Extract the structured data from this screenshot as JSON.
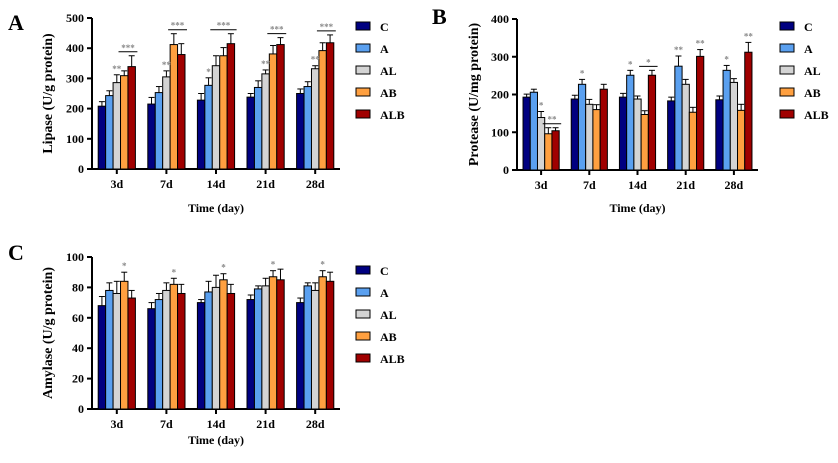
{
  "colors": {
    "C": "#000080",
    "A": "#5aa0f0",
    "AL": "#d4d4d4",
    "AB": "#ffa040",
    "ALB": "#a00000"
  },
  "chart_data": [
    {
      "panel_label": "A",
      "type": "bar",
      "title": "",
      "xlabel": "Time (day)",
      "ylabel": "Lipase (U/g protein)",
      "ylim": [
        0,
        500
      ],
      "yticks": [
        0,
        100,
        200,
        300,
        400,
        500
      ],
      "categories": [
        "3d",
        "7d",
        "14d",
        "21d",
        "28d"
      ],
      "legend": [
        "C",
        "A",
        "AL",
        "AB",
        "ALB"
      ],
      "legend_position": "right",
      "series": [
        {
          "name": "C",
          "values": [
            208,
            215,
            228,
            238,
            250
          ],
          "errors": [
            15,
            22,
            22,
            12,
            15
          ]
        },
        {
          "name": "A",
          "values": [
            243,
            253,
            277,
            270,
            273
          ],
          "errors": [
            16,
            20,
            25,
            22,
            16
          ]
        },
        {
          "name": "AL",
          "values": [
            286,
            305,
            342,
            315,
            332
          ],
          "errors": [
            26,
            20,
            33,
            13,
            10
          ]
        },
        {
          "name": "AB",
          "values": [
            309,
            412,
            375,
            381,
            392
          ],
          "errors": [
            16,
            36,
            27,
            28,
            26
          ]
        },
        {
          "name": "ALB",
          "values": [
            339,
            379,
            415,
            412,
            418
          ],
          "errors": [
            36,
            36,
            33,
            23,
            26
          ]
        }
      ],
      "annotations": [
        {
          "category": "3d",
          "series": "AL",
          "text": "**"
        },
        {
          "category": "3d",
          "series": "AB-ALB",
          "text": "***",
          "bracket": true
        },
        {
          "category": "7d",
          "series": "AL",
          "text": "**"
        },
        {
          "category": "7d",
          "series": "AB-ALB",
          "text": "***",
          "bracket": true
        },
        {
          "category": "14d",
          "series": "A",
          "text": "*"
        },
        {
          "category": "14d",
          "series": "AL-ALB",
          "text": "***",
          "bracket": true
        },
        {
          "category": "21d",
          "series": "AL",
          "text": "**"
        },
        {
          "category": "21d",
          "series": "AB-ALB",
          "text": "***",
          "bracket": true
        },
        {
          "category": "28d",
          "series": "AL",
          "text": "**"
        },
        {
          "category": "28d",
          "series": "AB-ALB",
          "text": "***",
          "bracket": true
        }
      ]
    },
    {
      "panel_label": "B",
      "type": "bar",
      "title": "",
      "xlabel": "Time (day)",
      "ylabel": "Protease (U/mg protein)",
      "ylim": [
        0,
        400
      ],
      "yticks": [
        0,
        100,
        200,
        300,
        400
      ],
      "categories": [
        "3d",
        "7d",
        "14d",
        "21d",
        "28d"
      ],
      "legend": [
        "C",
        "A",
        "AL",
        "AB",
        "ALB"
      ],
      "legend_position": "right",
      "series": [
        {
          "name": "C",
          "values": [
            193,
            188,
            193,
            183,
            186
          ],
          "errors": [
            8,
            10,
            10,
            10,
            10
          ]
        },
        {
          "name": "A",
          "values": [
            206,
            227,
            251,
            275,
            264
          ],
          "errors": [
            8,
            13,
            13,
            27,
            13
          ]
        },
        {
          "name": "AL",
          "values": [
            139,
            174,
            188,
            227,
            232
          ],
          "errors": [
            16,
            13,
            8,
            13,
            10
          ]
        },
        {
          "name": "AB",
          "values": [
            96,
            160,
            147,
            153,
            158
          ],
          "errors": [
            16,
            13,
            10,
            13,
            16
          ]
        },
        {
          "name": "ALB",
          "values": [
            104,
            214,
            251,
            301,
            312
          ],
          "errors": [
            8,
            13,
            13,
            18,
            26
          ]
        }
      ],
      "annotations": [
        {
          "category": "3d",
          "series": "AL",
          "text": "*"
        },
        {
          "category": "3d",
          "series": "AB-ALB",
          "text": "**",
          "bracket": true
        },
        {
          "category": "7d",
          "series": "A",
          "text": "*"
        },
        {
          "category": "14d",
          "series": "A",
          "text": "*"
        },
        {
          "category": "14d",
          "series": "AB-ALB",
          "text": "*",
          "bracket": true
        },
        {
          "category": "21d",
          "series": "A",
          "text": "**"
        },
        {
          "category": "21d",
          "series": "ALB",
          "text": "**"
        },
        {
          "category": "28d",
          "series": "A",
          "text": "*"
        },
        {
          "category": "28d",
          "series": "ALB",
          "text": "**"
        }
      ]
    },
    {
      "panel_label": "C",
      "type": "bar",
      "title": "",
      "xlabel": "Time (day)",
      "ylabel": "Amylase (U/g protein)",
      "ylim": [
        0,
        100
      ],
      "yticks": [
        0,
        20,
        40,
        60,
        80,
        100
      ],
      "categories": [
        "3d",
        "7d",
        "14d",
        "21d",
        "28d"
      ],
      "legend": [
        "C",
        "A",
        "AL",
        "AB",
        "ALB"
      ],
      "legend_position": "right",
      "series": [
        {
          "name": "C",
          "values": [
            68,
            66,
            70,
            72,
            70
          ],
          "errors": [
            6,
            4,
            2,
            3,
            3
          ]
        },
        {
          "name": "A",
          "values": [
            78,
            72,
            77,
            79,
            81
          ],
          "errors": [
            5,
            4,
            7,
            2,
            2
          ]
        },
        {
          "name": "AL",
          "values": [
            76,
            78,
            80,
            81,
            78
          ],
          "errors": [
            8,
            5,
            8,
            5,
            5
          ]
        },
        {
          "name": "AB",
          "values": [
            84,
            82,
            85,
            87,
            87
          ],
          "errors": [
            6,
            4,
            4,
            4,
            4
          ]
        },
        {
          "name": "ALB",
          "values": [
            73,
            76,
            76,
            85,
            84
          ],
          "errors": [
            5,
            6,
            6,
            7,
            6
          ]
        }
      ],
      "annotations": [
        {
          "category": "3d",
          "series": "AB",
          "text": "*"
        },
        {
          "category": "7d",
          "series": "AB",
          "text": "*"
        },
        {
          "category": "14d",
          "series": "AB",
          "text": "*"
        },
        {
          "category": "21d",
          "series": "AB",
          "text": "*"
        },
        {
          "category": "28d",
          "series": "AB",
          "text": "*"
        }
      ]
    }
  ]
}
